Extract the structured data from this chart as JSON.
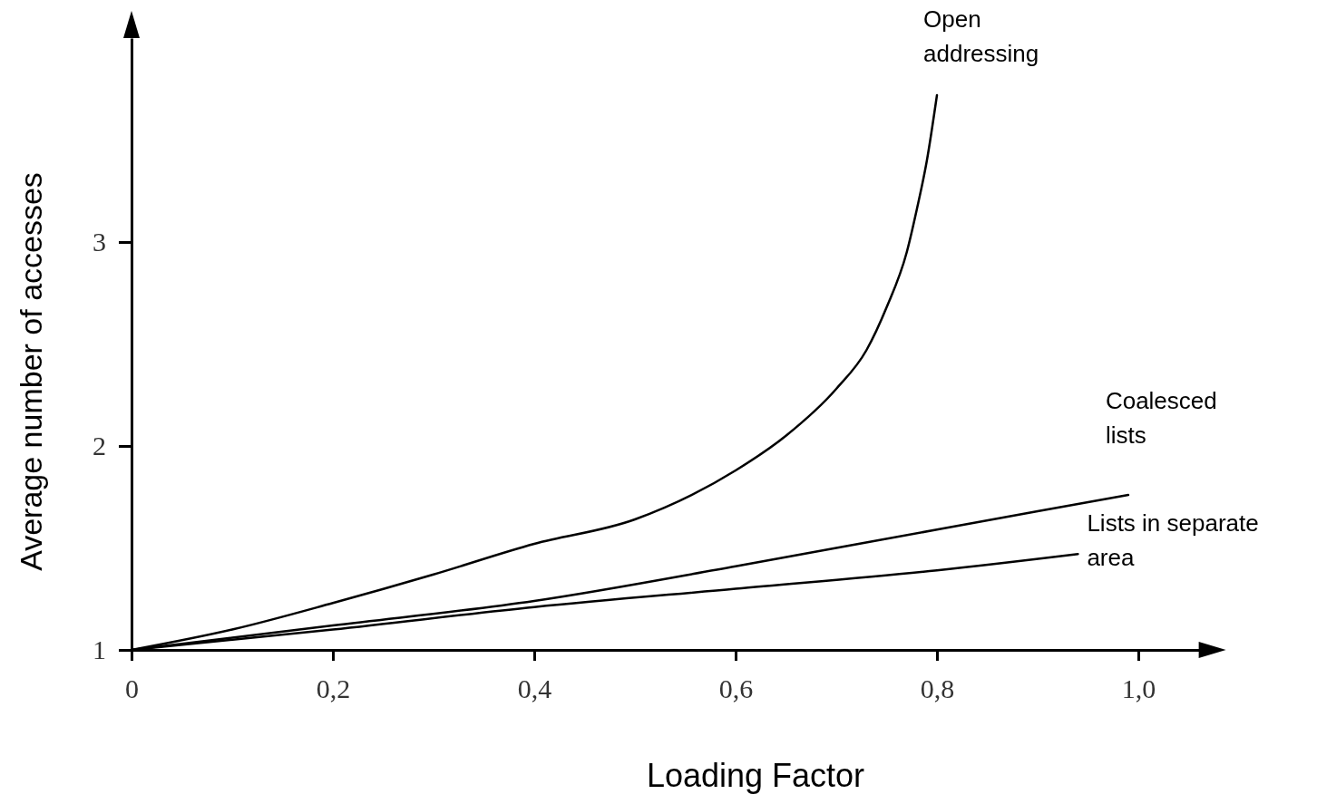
{
  "chart_data": {
    "type": "line",
    "xlabel": "Loading Factor",
    "ylabel": "Average number of accesses",
    "xlim": [
      0,
      1.06
    ],
    "ylim": [
      1,
      4
    ],
    "xticks": [
      {
        "value": 0,
        "label": "0"
      },
      {
        "value": 0.2,
        "label": "0,2"
      },
      {
        "value": 0.4,
        "label": "0,4"
      },
      {
        "value": 0.6,
        "label": "0,6"
      },
      {
        "value": 0.8,
        "label": "0,8"
      },
      {
        "value": 1.0,
        "label": "1,0"
      }
    ],
    "yticks": [
      1,
      2,
      3
    ],
    "grid": false,
    "marker": "none",
    "line_style": "solid",
    "series": [
      {
        "name": "Open addressing",
        "color": "#000000",
        "x": [
          0,
          0.1,
          0.2,
          0.3,
          0.4,
          0.5,
          0.6,
          0.65,
          0.7,
          0.73,
          0.75,
          0.77,
          0.78,
          0.79,
          0.8
        ],
        "values": [
          1,
          1.1,
          1.23,
          1.37,
          1.52,
          1.64,
          1.88,
          2.05,
          2.28,
          2.47,
          2.68,
          2.95,
          3.16,
          3.4,
          3.72
        ]
      },
      {
        "name": "Coalesced lists",
        "color": "#000000",
        "x": [
          0,
          0.2,
          0.4,
          0.6,
          0.8,
          0.9,
          0.99
        ],
        "values": [
          1,
          1.12,
          1.24,
          1.41,
          1.59,
          1.68,
          1.76
        ]
      },
      {
        "name": "Lists in separate area",
        "color": "#000000",
        "x": [
          0,
          0.2,
          0.4,
          0.6,
          0.8,
          0.94
        ],
        "values": [
          1,
          1.1,
          1.21,
          1.3,
          1.39,
          1.47
        ]
      }
    ]
  }
}
